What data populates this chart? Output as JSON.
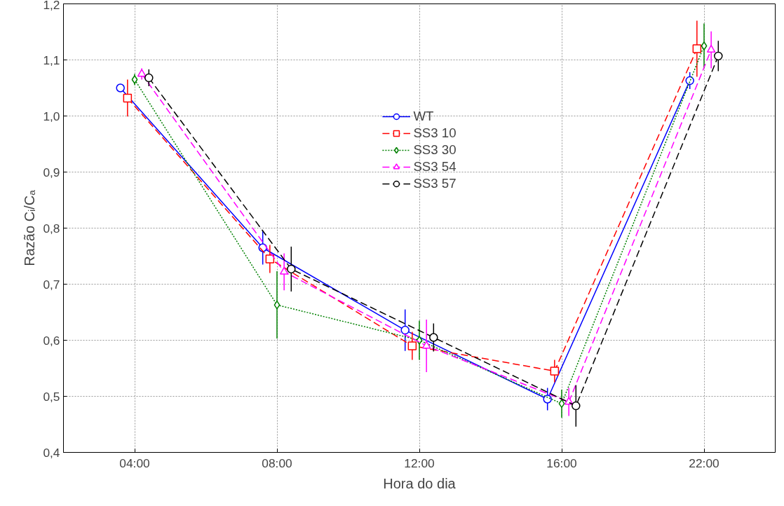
{
  "chart_data": {
    "type": "line",
    "xlabel": "Hora do dia",
    "ylabel": "Razão Cᵢ/Cₐ",
    "categories": [
      "04:00",
      "08:00",
      "12:00",
      "16:00",
      "22:00"
    ],
    "ylim": [
      0.4,
      1.2
    ],
    "yticks": [
      {
        "value": 0.4,
        "label": "0,4"
      },
      {
        "value": 0.5,
        "label": "0,5"
      },
      {
        "value": 0.6,
        "label": "0,6"
      },
      {
        "value": 0.7,
        "label": "0,7"
      },
      {
        "value": 0.8,
        "label": "0,8"
      },
      {
        "value": 0.9,
        "label": "0,9"
      },
      {
        "value": 1.0,
        "label": "1,0"
      },
      {
        "value": 1.1,
        "label": "1,1"
      },
      {
        "value": 1.2,
        "label": "1,2"
      }
    ],
    "grid": true,
    "legend": "top",
    "series": [
      {
        "name": "WT",
        "color": "#0000ff",
        "marker": "circle",
        "line_style": "solid",
        "values": [
          1.05,
          0.765,
          0.618,
          0.495,
          1.063
        ],
        "errors": [
          0.005,
          0.03,
          0.037,
          0.02,
          0.015
        ]
      },
      {
        "name": "SS3 10",
        "color": "#ff0000",
        "marker": "square",
        "line_style": "dashed",
        "values": [
          1.032,
          0.745,
          0.59,
          0.545,
          1.12
        ],
        "errors": [
          0.033,
          0.025,
          0.025,
          0.02,
          0.05
        ]
      },
      {
        "name": "SS3 30",
        "color": "#008000",
        "marker": "diamond",
        "line_style": "dotted",
        "values": [
          1.065,
          0.663,
          0.6,
          0.487,
          1.125
        ],
        "errors": [
          0.01,
          0.06,
          0.035,
          0.025,
          0.04
        ]
      },
      {
        "name": "SS3 54",
        "color": "#ff00ff",
        "marker": "triangle",
        "line_style": "dashed",
        "values": [
          1.075,
          0.722,
          0.59,
          0.49,
          1.118
        ],
        "errors": [
          0.01,
          0.033,
          0.047,
          0.025,
          0.033
        ]
      },
      {
        "name": "SS3 57",
        "color": "#000000",
        "marker": "circle",
        "line_style": "dashed",
        "values": [
          1.068,
          0.727,
          0.605,
          0.483,
          1.107
        ],
        "errors": [
          0.015,
          0.04,
          0.025,
          0.037,
          0.027
        ]
      }
    ]
  }
}
